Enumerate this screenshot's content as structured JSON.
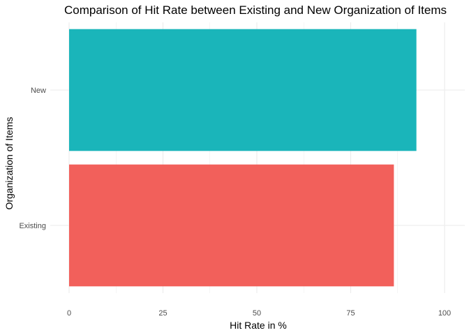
{
  "chart_data": {
    "type": "bar",
    "orientation": "horizontal",
    "title": "Comparison of Hit Rate between Existing and New Organization of Items",
    "xlabel": "Hit Rate in %",
    "ylabel": "Organization of Items",
    "categories": [
      "Existing",
      "New"
    ],
    "values": [
      86.5,
      92.5
    ],
    "colors": [
      "#F2605B",
      "#1AB5BA"
    ],
    "xlim": [
      0,
      104.6
    ],
    "xticks": [
      0,
      25,
      50,
      75,
      100
    ],
    "xtick_labels": [
      "0",
      "25",
      "50",
      "75",
      "100"
    ],
    "grid": true,
    "legend": "none",
    "theme": "minimal"
  }
}
